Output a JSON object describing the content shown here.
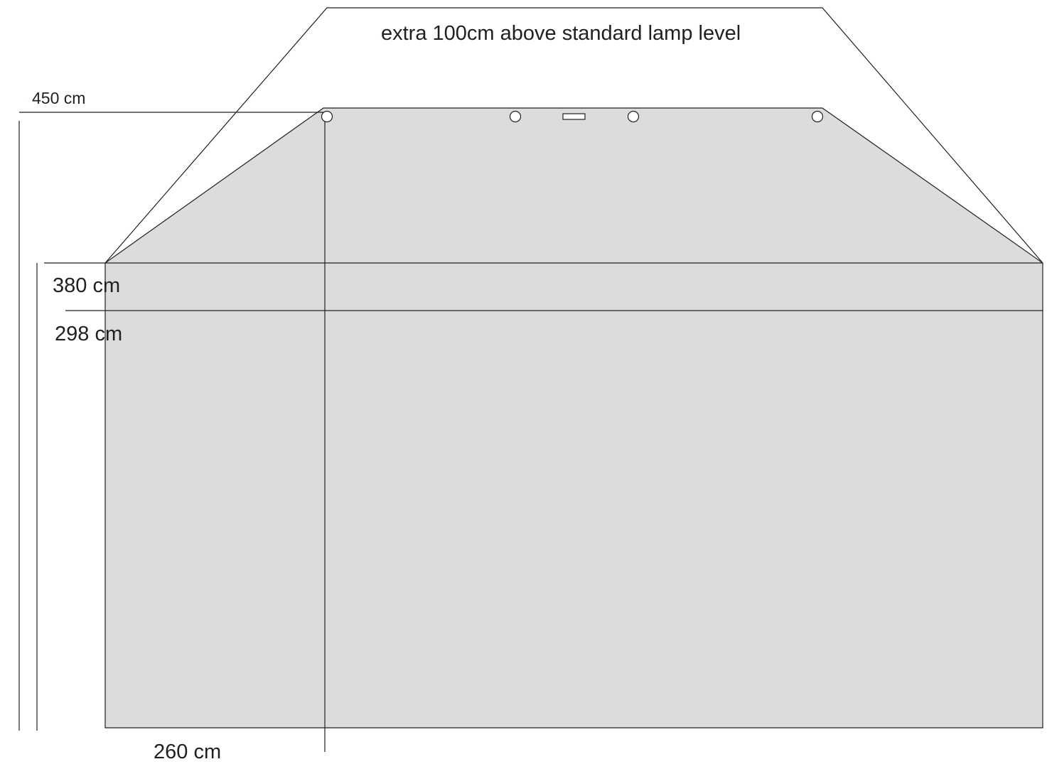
{
  "labels": {
    "extra_height": "extra 100cm above standard lamp level",
    "height_450": "450 cm",
    "height_380": "380 cm",
    "height_298": "298 cm",
    "width_260": "260 cm"
  },
  "colors": {
    "fill": "#dcdcdc",
    "stroke": "#231f20",
    "background": "#ffffff"
  }
}
